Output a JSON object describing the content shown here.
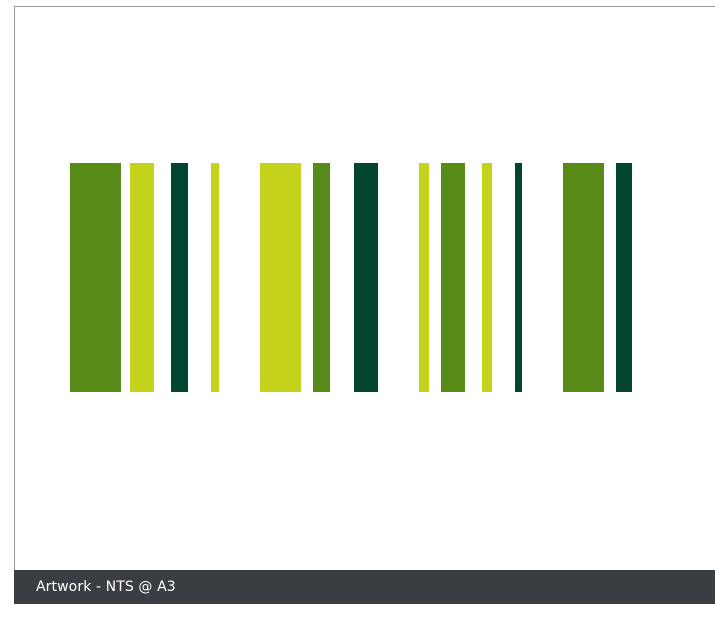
{
  "artwork": {
    "stripes": [
      {
        "color": "#578a17"
      },
      {
        "color": "#c5d21b"
      },
      {
        "color": "#024632"
      },
      {
        "color": "#c5d21b"
      },
      {
        "color": "#c5d21b"
      },
      {
        "color": "#578a17"
      },
      {
        "color": "#024632"
      },
      {
        "color": "#c5d21b"
      },
      {
        "color": "#578a17"
      },
      {
        "color": "#c5d21b"
      },
      {
        "color": "#024632"
      },
      {
        "color": "#578a17"
      },
      {
        "color": "#024632"
      }
    ]
  },
  "footer": {
    "label": "Artwork - NTS @ A3",
    "background": "#3a3e42"
  }
}
